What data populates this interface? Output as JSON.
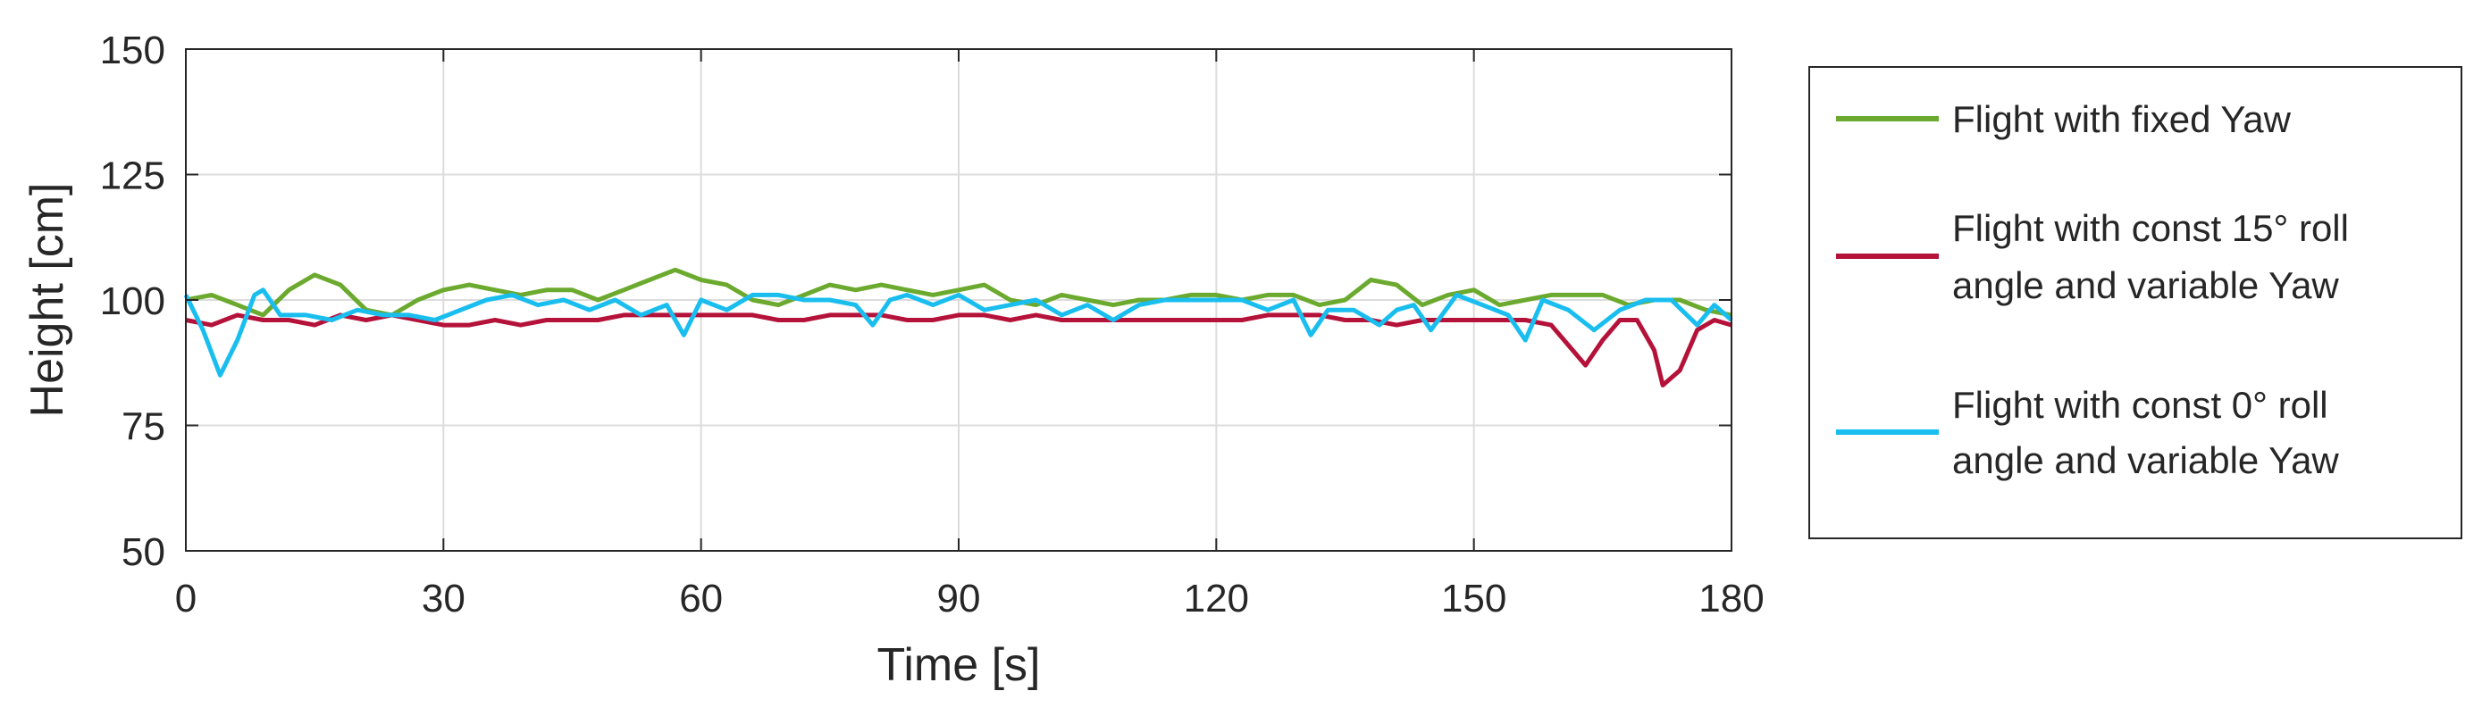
{
  "chart_data": {
    "type": "line",
    "xlabel": "Time [s]",
    "ylabel": "Height [cm]",
    "xlim": [
      0,
      180
    ],
    "ylim": [
      50,
      150
    ],
    "xticks": [
      "0",
      "30",
      "60",
      "90",
      "120",
      "150",
      "180"
    ],
    "yticks": [
      "50",
      "75",
      "100",
      "125",
      "150"
    ],
    "grid": true,
    "legend_position": "right-outside",
    "series": [
      {
        "name": "Flight with fixed Yaw",
        "color": "#6BAA2E",
        "x": [
          0,
          3,
          6,
          9,
          12,
          15,
          18,
          21,
          24,
          27,
          30,
          33,
          36,
          39,
          42,
          45,
          48,
          51,
          54,
          57,
          60,
          63,
          66,
          69,
          72,
          75,
          78,
          81,
          84,
          87,
          90,
          93,
          96,
          99,
          102,
          105,
          108,
          111,
          114,
          117,
          120,
          123,
          126,
          129,
          132,
          135,
          138,
          141,
          144,
          147,
          150,
          153,
          156,
          159,
          162,
          165,
          168,
          171,
          174,
          177,
          180
        ],
        "y": [
          100,
          101,
          99,
          97,
          102,
          105,
          103,
          98,
          97,
          100,
          102,
          103,
          102,
          101,
          102,
          102,
          100,
          102,
          104,
          106,
          104,
          103,
          100,
          99,
          101,
          103,
          102,
          103,
          102,
          101,
          102,
          103,
          100,
          99,
          101,
          100,
          99,
          100,
          100,
          101,
          101,
          100,
          101,
          101,
          99,
          100,
          104,
          103,
          99,
          101,
          102,
          99,
          100,
          101,
          101,
          101,
          99,
          100,
          100,
          98,
          97
        ]
      },
      {
        "name": "Flight with const 15° roll angle and variable Yaw",
        "color": "#B5123A",
        "x": [
          0,
          3,
          6,
          9,
          12,
          15,
          18,
          21,
          24,
          27,
          30,
          33,
          36,
          39,
          42,
          45,
          48,
          51,
          54,
          57,
          60,
          63,
          66,
          69,
          72,
          75,
          78,
          81,
          84,
          87,
          90,
          93,
          96,
          99,
          102,
          105,
          108,
          111,
          114,
          117,
          120,
          123,
          126,
          129,
          132,
          135,
          138,
          141,
          144,
          147,
          150,
          153,
          156,
          159,
          161,
          163,
          165,
          167,
          169,
          171,
          172,
          174,
          176,
          178,
          180
        ],
        "y": [
          96,
          95,
          97,
          96,
          96,
          95,
          97,
          96,
          97,
          96,
          95,
          95,
          96,
          95,
          96,
          96,
          96,
          97,
          97,
          97,
          97,
          97,
          97,
          96,
          96,
          97,
          97,
          97,
          96,
          96,
          97,
          97,
          96,
          97,
          96,
          96,
          96,
          96,
          96,
          96,
          96,
          96,
          97,
          97,
          97,
          96,
          96,
          95,
          96,
          96,
          96,
          96,
          96,
          95,
          91,
          87,
          92,
          96,
          96,
          90,
          83,
          86,
          94,
          96,
          95
        ]
      },
      {
        "name": "Flight with const 0° roll angle and variable Yaw",
        "color": "#19BEEF",
        "x": [
          0,
          2,
          4,
          6,
          8,
          9,
          11,
          14,
          17,
          20,
          23,
          26,
          29,
          32,
          35,
          38,
          41,
          44,
          47,
          50,
          53,
          56,
          58,
          60,
          63,
          66,
          69,
          72,
          75,
          78,
          80,
          82,
          84,
          87,
          90,
          93,
          96,
          99,
          102,
          105,
          108,
          111,
          114,
          117,
          120,
          123,
          126,
          129,
          131,
          133,
          136,
          139,
          141,
          143,
          145,
          148,
          151,
          154,
          156,
          158,
          161,
          164,
          167,
          170,
          173,
          176,
          178,
          180
        ],
        "y": [
          101,
          94,
          85,
          92,
          101,
          102,
          97,
          97,
          96,
          98,
          97,
          97,
          96,
          98,
          100,
          101,
          99,
          100,
          98,
          100,
          97,
          99,
          93,
          100,
          98,
          101,
          101,
          100,
          100,
          99,
          95,
          100,
          101,
          99,
          101,
          98,
          99,
          100,
          97,
          99,
          96,
          99,
          100,
          100,
          100,
          100,
          98,
          100,
          93,
          98,
          98,
          95,
          98,
          99,
          94,
          101,
          99,
          97,
          92,
          100,
          98,
          94,
          98,
          100,
          100,
          95,
          99,
          96
        ]
      }
    ]
  }
}
